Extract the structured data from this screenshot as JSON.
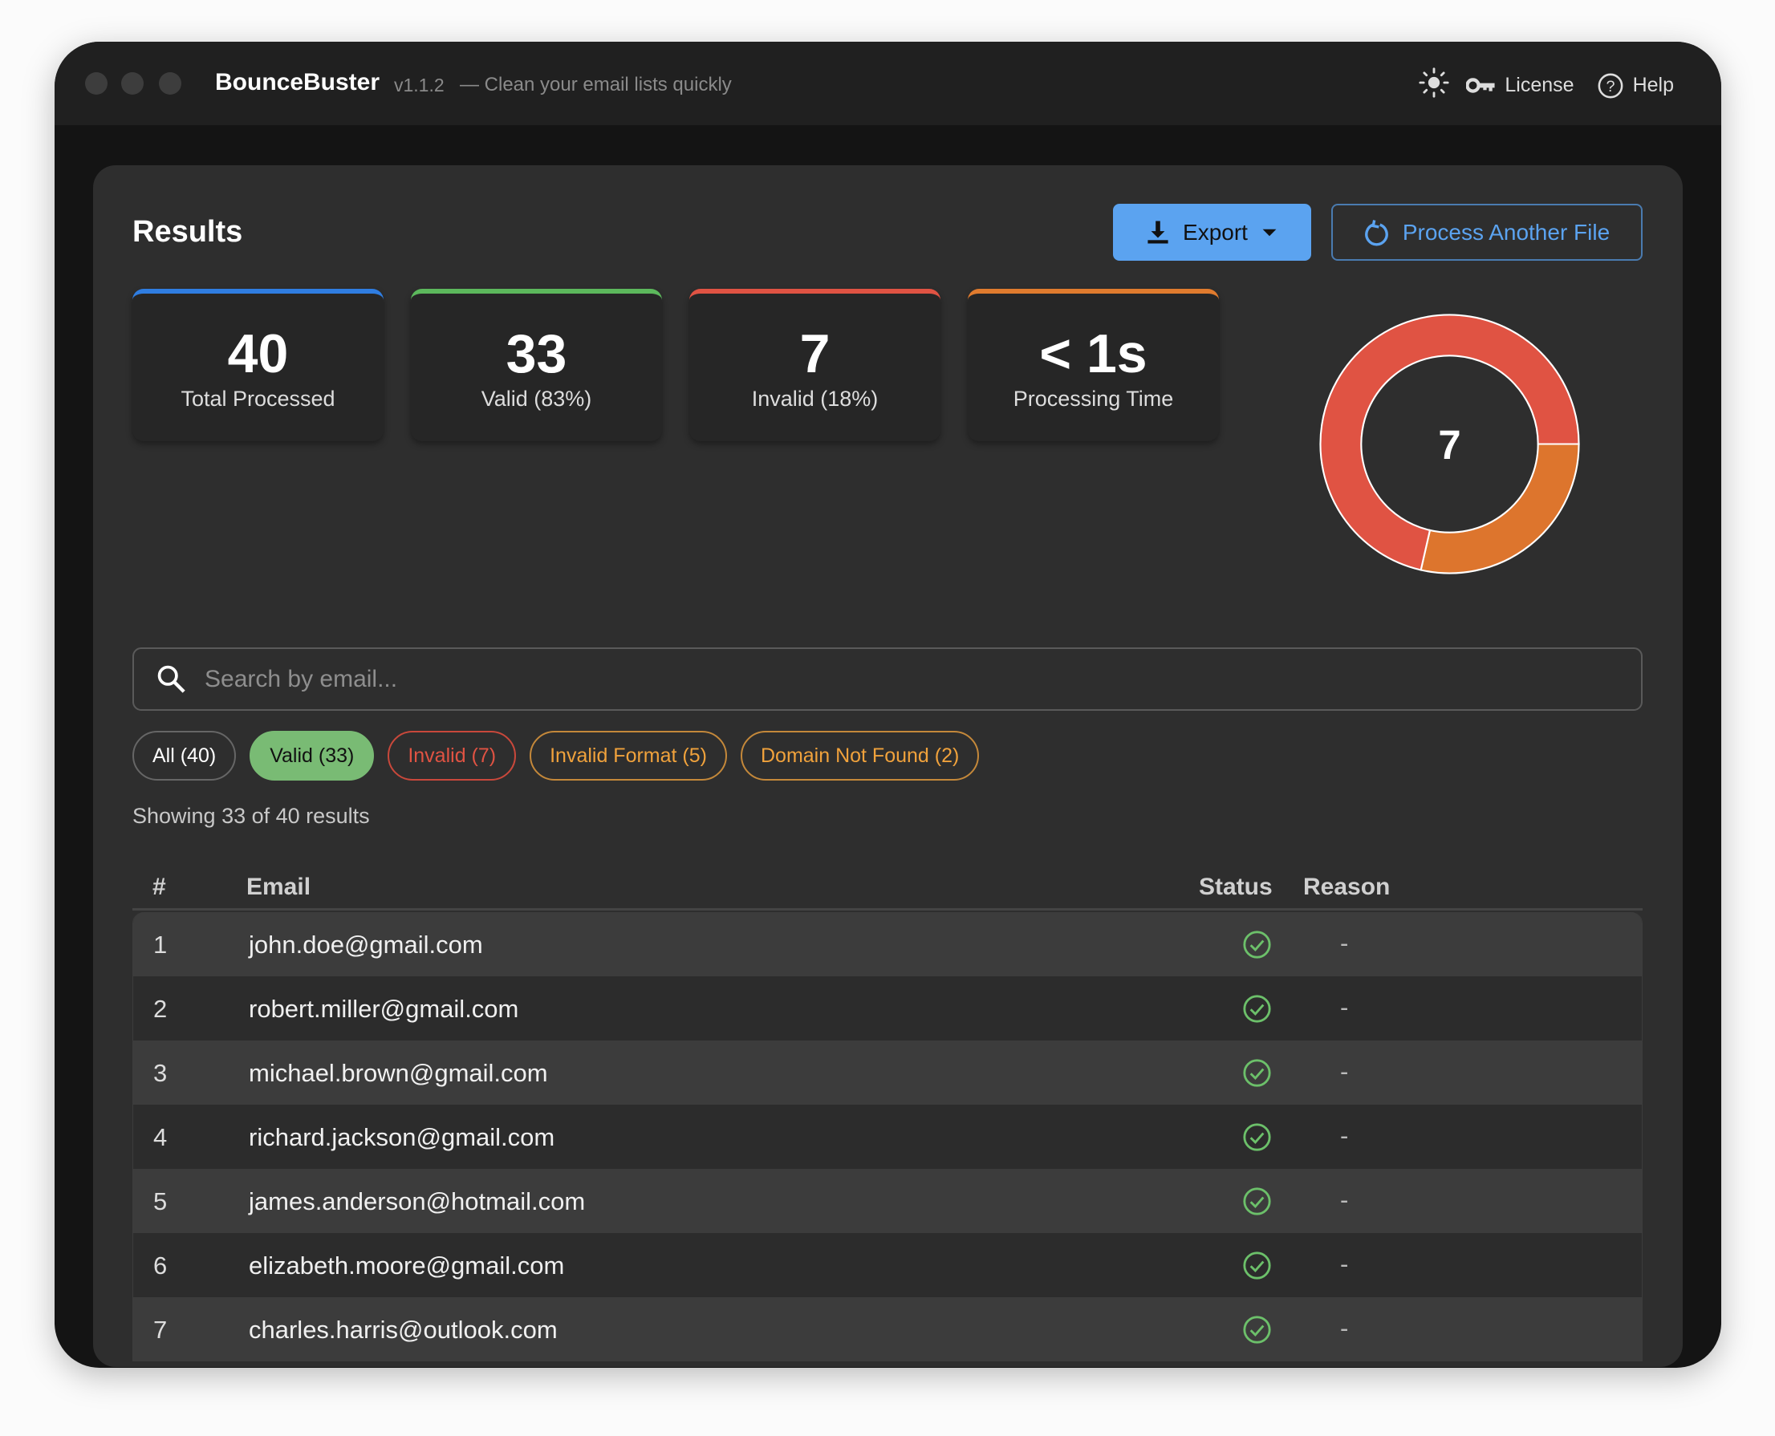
{
  "app": {
    "name": "BounceBuster",
    "version": "v1.1.2",
    "tagline": "— Clean your email lists quickly"
  },
  "titlebar": {
    "theme_icon": "sun-icon",
    "license_label": "License",
    "help_label": "Help"
  },
  "results": {
    "title": "Results",
    "export_label": "Export",
    "process_label": "Process Another File"
  },
  "stats": [
    {
      "value": "40",
      "label": "Total Processed",
      "color": "#2f7de1"
    },
    {
      "value": "33",
      "label": "Valid (83%)",
      "color": "#5cb85c"
    },
    {
      "value": "7",
      "label": "Invalid (18%)",
      "color": "#e05343"
    },
    {
      "value": "< 1s",
      "label": "Processing Time",
      "color": "#e07b2e"
    }
  ],
  "chart_data": {
    "type": "pie",
    "center_label": "7",
    "slices": [
      {
        "category": "Domain Not Found",
        "value": 2,
        "color": "#dd752d"
      },
      {
        "category": "Invalid Format",
        "value": 5,
        "color": "#e05343"
      }
    ]
  },
  "search": {
    "placeholder": "Search by email..."
  },
  "filters": [
    {
      "label": "All (40)",
      "color": "#666666",
      "text": "#ffffff",
      "active": false
    },
    {
      "label": "Valid (33)",
      "color": "#79bb74",
      "text": "#111111",
      "active": true
    },
    {
      "label": "Invalid (7)",
      "color": "#c9483b",
      "text": "#e05343",
      "active": false
    },
    {
      "label": "Invalid Format (5)",
      "color": "#c4883a",
      "text": "#f0a23c",
      "active": false
    },
    {
      "label": "Domain Not Found (2)",
      "color": "#c4883a",
      "text": "#f0a23c",
      "active": false
    }
  ],
  "showing": "Showing 33 of 40 results",
  "table": {
    "headers": [
      "#",
      "Email",
      "Status",
      "Reason"
    ],
    "rows": [
      {
        "n": "1",
        "email": "john.doe@gmail.com",
        "status": "valid",
        "reason": "-"
      },
      {
        "n": "2",
        "email": "robert.miller@gmail.com",
        "status": "valid",
        "reason": "-"
      },
      {
        "n": "3",
        "email": "michael.brown@gmail.com",
        "status": "valid",
        "reason": "-"
      },
      {
        "n": "4",
        "email": "richard.jackson@gmail.com",
        "status": "valid",
        "reason": "-"
      },
      {
        "n": "5",
        "email": "james.anderson@hotmail.com",
        "status": "valid",
        "reason": "-"
      },
      {
        "n": "6",
        "email": "elizabeth.moore@gmail.com",
        "status": "valid",
        "reason": "-"
      },
      {
        "n": "7",
        "email": "charles.harris@outlook.com",
        "status": "valid",
        "reason": "-"
      }
    ]
  }
}
